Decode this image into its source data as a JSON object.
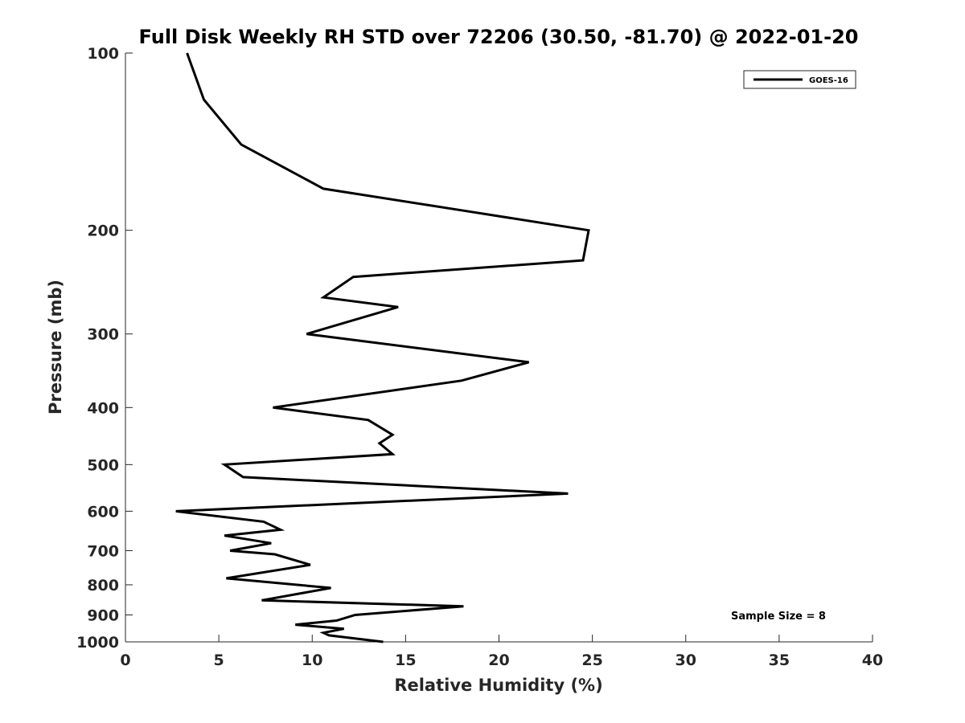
{
  "chart_data": {
    "type": "line",
    "title": "Full Disk Weekly RH STD over 72206 (30.50, -81.70) @ 2022-01-20",
    "xlabel": "Relative Humidity (%)",
    "ylabel": "Pressure (mb)",
    "xlim": [
      0,
      40
    ],
    "ylim": [
      100,
      1000
    ],
    "y_scale": "log",
    "y_reversed": true,
    "x_ticks": [
      "0",
      "5",
      "10",
      "15",
      "20",
      "25",
      "30",
      "35",
      "40"
    ],
    "y_ticks": [
      "100",
      "200",
      "300",
      "400",
      "500",
      "600",
      "700",
      "800",
      "900",
      "1000"
    ],
    "grid": false,
    "legend_position": "top-right",
    "series": [
      {
        "name": "GOES-16",
        "color": "#000000",
        "x": [
          3.3,
          4.2,
          6.2,
          10.6,
          18.0,
          24.8,
          24.5,
          12.2,
          10.6,
          14.6,
          9.7,
          21.6,
          18.0,
          7.9,
          13.0,
          14.3,
          13.6,
          14.3,
          5.3,
          6.3,
          23.7,
          2.7,
          7.4,
          8.3,
          5.3,
          7.8,
          5.6,
          8.0,
          9.9,
          5.4,
          11.0,
          7.3,
          18.1,
          12.3,
          11.3,
          9.1,
          11.7,
          10.6,
          10.9,
          13.8
        ],
        "y": [
          100,
          120,
          143,
          170,
          185,
          200,
          225,
          240,
          260,
          270,
          300,
          335,
          360,
          400,
          420,
          445,
          460,
          480,
          500,
          525,
          560,
          600,
          625,
          645,
          660,
          680,
          700,
          710,
          740,
          780,
          810,
          850,
          870,
          900,
          920,
          935,
          950,
          965,
          975,
          1000
        ]
      }
    ],
    "annotations": [
      "Sample Size = 8"
    ]
  }
}
